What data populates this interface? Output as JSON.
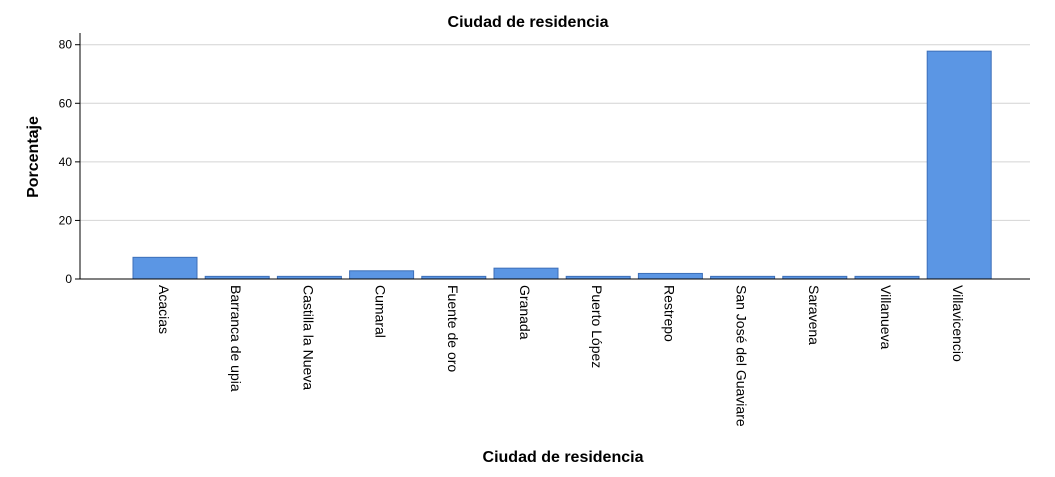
{
  "chart_data": {
    "type": "bar",
    "title": "Ciudad de residencia",
    "xlabel": "Ciudad de residencia",
    "ylabel": "Porcentaje",
    "categories": [
      "Acacias",
      "Barranca de upia",
      "Castilla la Nueva",
      "Cumaral",
      "Fuente de oro",
      "Granada",
      "Puerto López",
      "Restrepo",
      "San José del Guaviare",
      "Saravena",
      "Villanueva",
      "Villavicencio"
    ],
    "values": [
      7.4,
      0.9,
      0.9,
      2.8,
      0.9,
      3.7,
      0.9,
      1.9,
      0.9,
      0.9,
      0.9,
      77.8
    ],
    "yticks": [
      0,
      20,
      40,
      60,
      80
    ],
    "ylim": [
      0,
      84
    ],
    "grid": true,
    "colors": {
      "bar": "#5b96e4",
      "bar_edge": "#3d6fb8"
    }
  }
}
